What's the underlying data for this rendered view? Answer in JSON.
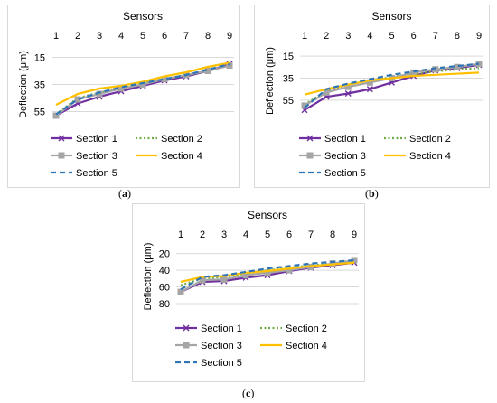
{
  "subfigure_labels": [
    {
      "open": "(",
      "letter": "a",
      "close": ")"
    },
    {
      "open": "(",
      "letter": "b",
      "close": ")"
    },
    {
      "open": "(",
      "letter": "c",
      "close": ")"
    }
  ],
  "series_styles": [
    {
      "name": "Section 1",
      "color": "#7030a0",
      "dash": "solid",
      "marker": "x"
    },
    {
      "name": "Section 2",
      "color": "#70ad47",
      "dash": "dotted",
      "marker": "none"
    },
    {
      "name": "Section 3",
      "color": "#a5a5a5",
      "dash": "solid",
      "marker": "square"
    },
    {
      "name": "Section 4",
      "color": "#ffc000",
      "dash": "solid",
      "marker": "none"
    },
    {
      "name": "Section 5",
      "color": "#2e75b6",
      "dash": "dashed",
      "marker": "none"
    }
  ],
  "chart_data": [
    {
      "type": "line",
      "panel": "a",
      "title": "Sensors",
      "ylabel": "Deflection (μm)",
      "x": [
        1,
        2,
        3,
        4,
        5,
        6,
        7,
        8,
        9
      ],
      "ylim": [
        60,
        10
      ],
      "y_reversed": true,
      "yticks": [
        15,
        35,
        55
      ],
      "x_axis_position": "top",
      "grid": "horizontal",
      "legend": "bottom",
      "series": [
        {
          "name": "Section 1",
          "values": [
            58,
            49,
            44,
            40,
            36,
            32,
            29,
            25,
            20
          ]
        },
        {
          "name": "Section 2",
          "values": [
            57,
            45,
            41,
            38,
            34,
            31,
            28,
            25,
            21
          ]
        },
        {
          "name": "Section 3",
          "values": [
            58,
            46,
            42,
            38,
            35,
            31,
            28,
            25,
            21
          ]
        },
        {
          "name": "Section 4",
          "values": [
            50,
            42,
            38,
            36,
            33,
            29,
            26,
            22,
            19
          ]
        },
        {
          "name": "Section 5",
          "values": [
            57,
            46,
            41,
            37,
            34,
            31,
            28,
            24,
            20
          ]
        }
      ]
    },
    {
      "type": "line",
      "panel": "b",
      "title": "Sensors",
      "ylabel": "Deflection (μm)",
      "x": [
        1,
        2,
        3,
        4,
        5,
        6,
        7,
        8,
        9
      ],
      "ylim": [
        65,
        10
      ],
      "y_reversed": true,
      "yticks": [
        15,
        35,
        55
      ],
      "x_axis_position": "top",
      "grid": "horizontal",
      "legend": "bottom",
      "series": [
        {
          "name": "Section 1",
          "values": [
            64,
            52,
            49,
            45,
            39,
            33,
            28,
            26,
            23
          ]
        },
        {
          "name": "Section 2",
          "values": [
            59,
            47,
            41,
            37,
            34,
            31,
            29,
            27,
            26
          ]
        },
        {
          "name": "Section 3",
          "values": [
            60,
            48,
            43,
            39,
            35,
            30,
            27,
            25,
            22
          ]
        },
        {
          "name": "Section 4",
          "values": [
            50,
            45,
            41,
            37,
            35,
            33,
            32,
            31,
            30
          ]
        },
        {
          "name": "Section 5",
          "values": [
            62,
            45,
            40,
            36,
            32,
            29,
            26,
            24,
            22
          ]
        }
      ]
    },
    {
      "type": "line",
      "panel": "c",
      "title": "Sensors",
      "ylabel": "Deflection (μm)",
      "x": [
        1,
        2,
        3,
        4,
        5,
        6,
        7,
        8,
        9
      ],
      "ylim": [
        80,
        15
      ],
      "y_reversed": true,
      "yticks": [
        20,
        40,
        60,
        80
      ],
      "x_axis_position": "top",
      "grid": "horizontal",
      "legend": "bottom",
      "series": [
        {
          "name": "Section 1",
          "values": [
            66,
            54,
            53,
            49,
            46,
            41,
            37,
            34,
            31
          ]
        },
        {
          "name": "Section 2",
          "values": [
            58,
            50,
            48,
            44,
            40,
            37,
            34,
            32,
            30
          ]
        },
        {
          "name": "Section 3",
          "values": [
            66,
            52,
            51,
            46,
            43,
            40,
            36,
            32,
            28
          ]
        },
        {
          "name": "Section 4",
          "values": [
            54,
            48,
            47,
            43,
            41,
            38,
            35,
            33,
            31
          ]
        },
        {
          "name": "Section 5",
          "values": [
            63,
            48,
            46,
            42,
            38,
            35,
            32,
            30,
            28
          ]
        }
      ]
    }
  ]
}
